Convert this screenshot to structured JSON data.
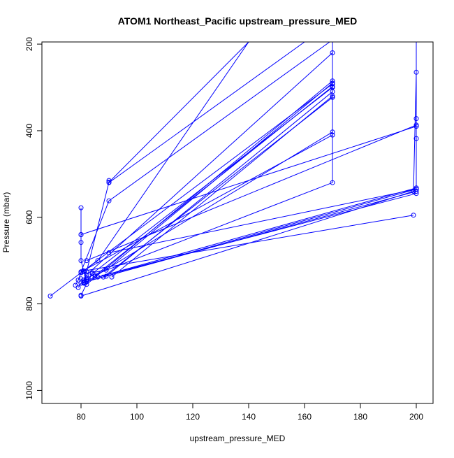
{
  "chart_data": {
    "type": "line",
    "title": "ATOM1 Northeast_Pacific upstream_pressure_MED",
    "xlabel": "upstream_pressure_MED",
    "ylabel": "Pressure (mbar)",
    "xlim": [
      66,
      206
    ],
    "ylim": [
      1030,
      195
    ],
    "y_reversed": true,
    "x_ticks": [
      80,
      100,
      120,
      140,
      160,
      180,
      200
    ],
    "y_ticks": [
      200,
      400,
      600,
      800,
      1000
    ],
    "x_tick_labels": [
      "80",
      "100",
      "120",
      "140",
      "160",
      "180",
      "200"
    ],
    "y_tick_labels": [
      "200",
      "400",
      "600",
      "800",
      "1000"
    ],
    "grid": false,
    "legend": "none",
    "series_color": "#0000ff",
    "marker": "open-circle",
    "profiles": [
      [
        [
          69,
          782
        ],
        [
          80,
          728
        ],
        [
          86,
          700
        ],
        [
          140,
          195
        ]
      ],
      [
        [
          78,
          757
        ],
        [
          79,
          745
        ],
        [
          80,
          726
        ],
        [
          90,
          562
        ],
        [
          169,
          195
        ]
      ],
      [
        [
          79,
          762
        ],
        [
          80,
          752
        ],
        [
          81,
          745
        ],
        [
          82,
          725
        ],
        [
          90,
          519
        ],
        [
          140,
          195
        ]
      ],
      [
        [
          80,
          780
        ],
        [
          84,
          728
        ],
        [
          89,
          722
        ],
        [
          170,
          290
        ]
      ],
      [
        [
          80,
          742
        ],
        [
          81,
          752
        ],
        [
          82,
          740
        ],
        [
          170,
          520
        ],
        [
          170,
          195
        ]
      ],
      [
        [
          80,
          578
        ],
        [
          80,
          640
        ],
        [
          80,
          658
        ],
        [
          80,
          700
        ],
        [
          81,
          725
        ],
        [
          82,
          748
        ],
        [
          89,
          736
        ],
        [
          170,
          310
        ]
      ],
      [
        [
          81,
          752
        ],
        [
          82,
          733
        ],
        [
          170,
          220
        ]
      ],
      [
        [
          82,
          700
        ],
        [
          200,
          387
        ],
        [
          200,
          195
        ]
      ],
      [
        [
          84,
          730
        ],
        [
          170,
          300
        ],
        [
          170,
          195
        ]
      ],
      [
        [
          88,
          738
        ],
        [
          170,
          323
        ]
      ],
      [
        [
          90,
          515
        ],
        [
          90,
          520
        ],
        [
          160,
          195
        ]
      ],
      [
        [
          90,
          682
        ],
        [
          200,
          535
        ],
        [
          200,
          195
        ]
      ],
      [
        [
          91,
          738
        ],
        [
          170,
          320
        ]
      ],
      [
        [
          80,
          640
        ],
        [
          200,
          390
        ]
      ],
      [
        [
          81,
          750
        ],
        [
          200,
          540
        ]
      ],
      [
        [
          82,
          745
        ],
        [
          200,
          545
        ]
      ],
      [
        [
          84,
          740
        ],
        [
          170,
          403
        ]
      ],
      [
        [
          80,
          726
        ],
        [
          170,
          410
        ]
      ],
      [
        [
          81,
          724
        ],
        [
          199,
          595
        ]
      ],
      [
        [
          80,
          782
        ],
        [
          199,
          540
        ],
        [
          200,
          265
        ]
      ],
      [
        [
          85,
          735
        ],
        [
          170,
          298
        ],
        [
          170,
          195
        ]
      ],
      [
        [
          86,
          738
        ],
        [
          200,
          532
        ],
        [
          200,
          418
        ],
        [
          200,
          372
        ],
        [
          200,
          195
        ]
      ],
      [
        [
          82,
          755
        ],
        [
          170,
          285
        ]
      ],
      [
        [
          80,
          752
        ],
        [
          200,
          535
        ]
      ],
      [
        [
          80,
          728
        ],
        [
          170,
          292
        ]
      ]
    ]
  }
}
